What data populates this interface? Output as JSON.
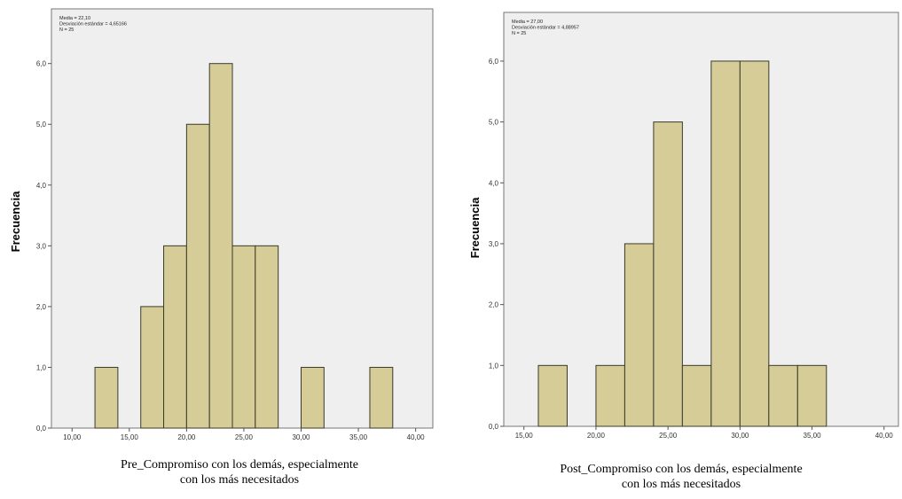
{
  "colors": {
    "plot_bg": "#efefef",
    "bar_fill": "#d5cc98",
    "bar_stroke": "#3a3a2a",
    "frame": "#777777"
  },
  "chart_data": [
    {
      "type": "bar",
      "subtype": "histogram",
      "ylabel": "Frecuencia",
      "xlabel_lines": [
        "Pre_Compromiso con los demás, especialmente",
        "con los más necesitados"
      ],
      "stats_lines": [
        "Media = 22,10",
        "Desviación estándar = 4,65166",
        "N = 25"
      ],
      "bin_width": 2,
      "bins": [
        {
          "start": 12,
          "count": 1
        },
        {
          "start": 16,
          "count": 2
        },
        {
          "start": 18,
          "count": 3
        },
        {
          "start": 20,
          "count": 5
        },
        {
          "start": 22,
          "count": 6
        },
        {
          "start": 24,
          "count": 3
        },
        {
          "start": 26,
          "count": 3
        },
        {
          "start": 30,
          "count": 1
        },
        {
          "start": 36,
          "count": 1
        }
      ],
      "xlim": [
        8.2,
        41.5
      ],
      "ylim": [
        0,
        6.9
      ],
      "x_ticks": [
        10,
        15,
        20,
        25,
        30,
        35,
        40
      ],
      "x_tick_labels": [
        "10,00",
        "15,00",
        "20,00",
        "25,00",
        "30,00",
        "35,00",
        "40,00"
      ],
      "y_ticks": [
        0,
        1,
        2,
        3,
        4,
        5,
        6
      ],
      "y_tick_labels": [
        "0,0",
        "1,0",
        "2,0",
        "3,0",
        "4,0",
        "5,0",
        "6,0"
      ],
      "grid": false,
      "stats_placement": "top-left"
    },
    {
      "type": "bar",
      "subtype": "histogram",
      "ylabel": "Frecuencia",
      "xlabel_lines": [
        "Post_Compromiso con los demás, especialmente",
        "con los más necesitados"
      ],
      "stats_lines": [
        "Media = 27,00",
        "Desviación estándar = 4,88957",
        "N = 25"
      ],
      "bin_width": 2,
      "bins": [
        {
          "start": 16,
          "count": 1
        },
        {
          "start": 20,
          "count": 1
        },
        {
          "start": 22,
          "count": 3
        },
        {
          "start": 24,
          "count": 5
        },
        {
          "start": 26,
          "count": 1
        },
        {
          "start": 28,
          "count": 6
        },
        {
          "start": 30,
          "count": 6
        },
        {
          "start": 32,
          "count": 1
        },
        {
          "start": 34,
          "count": 1
        }
      ],
      "xlim": [
        13.6,
        41.0
      ],
      "ylim": [
        0,
        6.8
      ],
      "x_ticks": [
        15,
        20,
        25,
        30,
        35,
        40
      ],
      "x_tick_labels": [
        "15,00",
        "20,00",
        "25,00",
        "30,00",
        "35,00",
        "40,00"
      ],
      "y_ticks": [
        0,
        1,
        2,
        3,
        4,
        5,
        6
      ],
      "y_tick_labels": [
        "0,0",
        "1,0",
        "2,0",
        "3,0",
        "4,0",
        "5,0",
        "6,0"
      ],
      "grid": false,
      "stats_placement": "top-left"
    }
  ]
}
